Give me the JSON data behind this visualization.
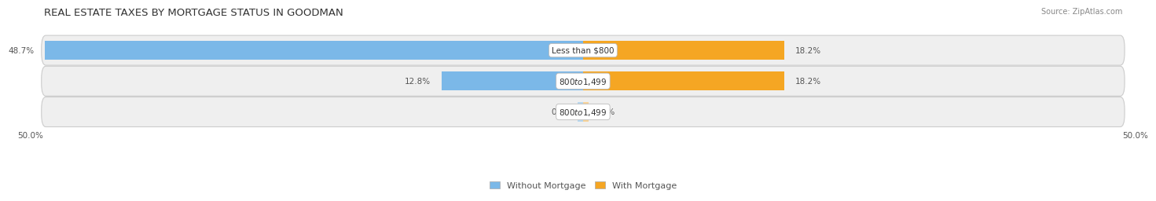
{
  "title": "Real Estate Taxes by Mortgage Status in Goodman",
  "source": "Source: ZipAtlas.com",
  "rows": [
    {
      "label": "Less than $800",
      "without_mortgage": 48.7,
      "with_mortgage": 18.2
    },
    {
      "label": "$800 to $1,499",
      "without_mortgage": 12.8,
      "with_mortgage": 18.2
    },
    {
      "label": "$800 to $1,499",
      "without_mortgage": 0.0,
      "with_mortgage": 0.0
    }
  ],
  "color_without": "#7BB8E8",
  "color_without_light": "#B8D8F0",
  "color_with": "#F5A623",
  "color_with_light": "#F8D49A",
  "axis_limit": 50.0,
  "bg_main": "#FFFFFF",
  "bar_height": 0.62,
  "title_fontsize": 9.5,
  "label_fontsize": 7.5,
  "tick_fontsize": 7.5,
  "legend_fontsize": 8
}
